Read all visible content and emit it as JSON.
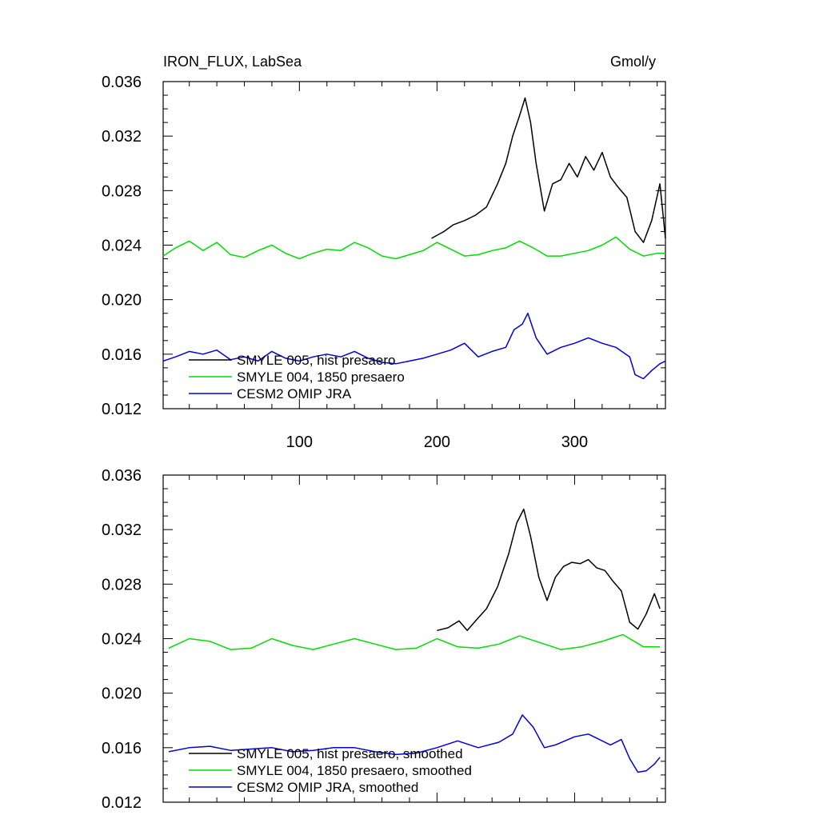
{
  "header": {
    "title": "IRON_FLUX, LabSea",
    "units": "Gmol/y"
  },
  "chart_data": [
    {
      "type": "line",
      "title": "IRON_FLUX, LabSea",
      "units": "Gmol/y",
      "xlim": [
        1,
        366
      ],
      "ylim": [
        0.012,
        0.036
      ],
      "x_ticks": [
        100,
        200,
        300
      ],
      "x_tick_labels": [
        "100",
        "200",
        "300"
      ],
      "y_ticks": [
        0.012,
        0.016,
        0.02,
        0.024,
        0.028,
        0.032,
        0.036
      ],
      "y_tick_labels": [
        "0.012",
        "0.016",
        "0.020",
        "0.024",
        "0.028",
        "0.032",
        "0.036"
      ],
      "legend_position": "bottom-left",
      "grid": false,
      "series": [
        {
          "name": "SMYLE 005, hist presaero",
          "color": "#000000",
          "x": [
            196,
            205,
            212,
            220,
            228,
            236,
            244,
            250,
            255,
            260,
            264,
            268,
            272,
            278,
            284,
            290,
            296,
            302,
            308,
            314,
            320,
            326,
            332,
            338,
            344,
            350,
            356,
            362,
            366
          ],
          "y": [
            0.0245,
            0.025,
            0.0255,
            0.0258,
            0.0262,
            0.0268,
            0.0285,
            0.03,
            0.032,
            0.0335,
            0.0348,
            0.033,
            0.03,
            0.0265,
            0.0285,
            0.0288,
            0.03,
            0.029,
            0.0305,
            0.0295,
            0.0308,
            0.029,
            0.0282,
            0.0275,
            0.025,
            0.0242,
            0.0258,
            0.0285,
            0.0245
          ]
        },
        {
          "name": "SMYLE 004, 1850 presaero",
          "color": "#00dd00",
          "x": [
            1,
            10,
            20,
            30,
            40,
            50,
            60,
            70,
            80,
            90,
            100,
            110,
            120,
            130,
            140,
            150,
            160,
            170,
            180,
            190,
            200,
            210,
            220,
            230,
            240,
            250,
            260,
            270,
            280,
            290,
            300,
            310,
            320,
            330,
            340,
            350,
            360,
            366
          ],
          "y": [
            0.0232,
            0.0238,
            0.0243,
            0.0236,
            0.0242,
            0.0233,
            0.0231,
            0.0236,
            0.024,
            0.0234,
            0.023,
            0.0234,
            0.0237,
            0.0236,
            0.0242,
            0.0238,
            0.0232,
            0.023,
            0.0233,
            0.0236,
            0.0242,
            0.0237,
            0.0232,
            0.0233,
            0.0236,
            0.0238,
            0.0243,
            0.0238,
            0.0232,
            0.0232,
            0.0234,
            0.0236,
            0.024,
            0.0246,
            0.0237,
            0.0232,
            0.0234,
            0.0234
          ]
        },
        {
          "name": "CESM2 OMIP JRA",
          "color": "#0000dd",
          "x": [
            1,
            10,
            20,
            30,
            40,
            50,
            60,
            70,
            80,
            90,
            100,
            110,
            120,
            130,
            140,
            150,
            160,
            170,
            180,
            190,
            200,
            210,
            220,
            230,
            240,
            250,
            256,
            262,
            266,
            272,
            280,
            290,
            300,
            310,
            320,
            330,
            340,
            344,
            350,
            356,
            362,
            366
          ],
          "y": [
            0.0155,
            0.0158,
            0.0162,
            0.016,
            0.0163,
            0.0156,
            0.0158,
            0.0155,
            0.0162,
            0.0157,
            0.0155,
            0.0158,
            0.016,
            0.0158,
            0.0162,
            0.0157,
            0.0154,
            0.0153,
            0.0155,
            0.0157,
            0.016,
            0.0163,
            0.0168,
            0.0158,
            0.0162,
            0.0165,
            0.0178,
            0.0182,
            0.019,
            0.0172,
            0.016,
            0.0165,
            0.0168,
            0.0172,
            0.0168,
            0.0165,
            0.0158,
            0.0145,
            0.0142,
            0.0148,
            0.0153,
            0.0155
          ]
        }
      ]
    },
    {
      "type": "line",
      "xlim": [
        1,
        366
      ],
      "ylim": [
        0.012,
        0.036
      ],
      "x_ticks": [
        100,
        200,
        300
      ],
      "y_ticks": [
        0.012,
        0.016,
        0.02,
        0.024,
        0.028,
        0.032,
        0.036
      ],
      "y_tick_labels": [
        "0.012",
        "0.016",
        "0.020",
        "0.024",
        "0.028",
        "0.032",
        "0.036"
      ],
      "legend_position": "bottom-left",
      "grid": false,
      "series": [
        {
          "name": "SMYLE 005, hist presaero, smoothed",
          "color": "#000000",
          "x": [
            200,
            208,
            216,
            222,
            228,
            236,
            244,
            252,
            258,
            263,
            268,
            274,
            280,
            286,
            292,
            298,
            304,
            310,
            316,
            322,
            328,
            334,
            340,
            346,
            352,
            358,
            362
          ],
          "y": [
            0.0246,
            0.0248,
            0.0253,
            0.0246,
            0.0253,
            0.0262,
            0.0278,
            0.0302,
            0.0325,
            0.0335,
            0.0315,
            0.0285,
            0.0268,
            0.0285,
            0.0293,
            0.0296,
            0.0295,
            0.0298,
            0.0292,
            0.029,
            0.0282,
            0.0275,
            0.0252,
            0.0247,
            0.0258,
            0.0273,
            0.0262
          ]
        },
        {
          "name": "SMYLE 004, 1850 presaero, smoothed",
          "color": "#00dd00",
          "x": [
            5,
            20,
            35,
            50,
            65,
            80,
            95,
            110,
            125,
            140,
            155,
            170,
            185,
            200,
            215,
            230,
            245,
            260,
            275,
            290,
            305,
            320,
            335,
            350,
            362
          ],
          "y": [
            0.0233,
            0.024,
            0.0238,
            0.0232,
            0.0233,
            0.024,
            0.0235,
            0.0232,
            0.0236,
            0.024,
            0.0236,
            0.0232,
            0.0233,
            0.024,
            0.0234,
            0.0233,
            0.0236,
            0.0242,
            0.0237,
            0.0232,
            0.0234,
            0.0238,
            0.0243,
            0.0234,
            0.0234
          ]
        },
        {
          "name": "CESM2 OMIP JRA, smoothed",
          "color": "#0000dd",
          "x": [
            5,
            20,
            35,
            50,
            65,
            80,
            95,
            110,
            125,
            140,
            155,
            170,
            185,
            200,
            215,
            230,
            245,
            255,
            262,
            270,
            278,
            286,
            300,
            310,
            318,
            326,
            334,
            340,
            346,
            352,
            358,
            362
          ],
          "y": [
            0.0157,
            0.016,
            0.0161,
            0.0158,
            0.0159,
            0.016,
            0.0157,
            0.0158,
            0.016,
            0.016,
            0.0157,
            0.0155,
            0.0156,
            0.016,
            0.0165,
            0.016,
            0.0164,
            0.017,
            0.0184,
            0.0175,
            0.016,
            0.0162,
            0.0168,
            0.017,
            0.0166,
            0.0162,
            0.0166,
            0.0152,
            0.0142,
            0.0143,
            0.0148,
            0.0153
          ]
        }
      ]
    }
  ]
}
